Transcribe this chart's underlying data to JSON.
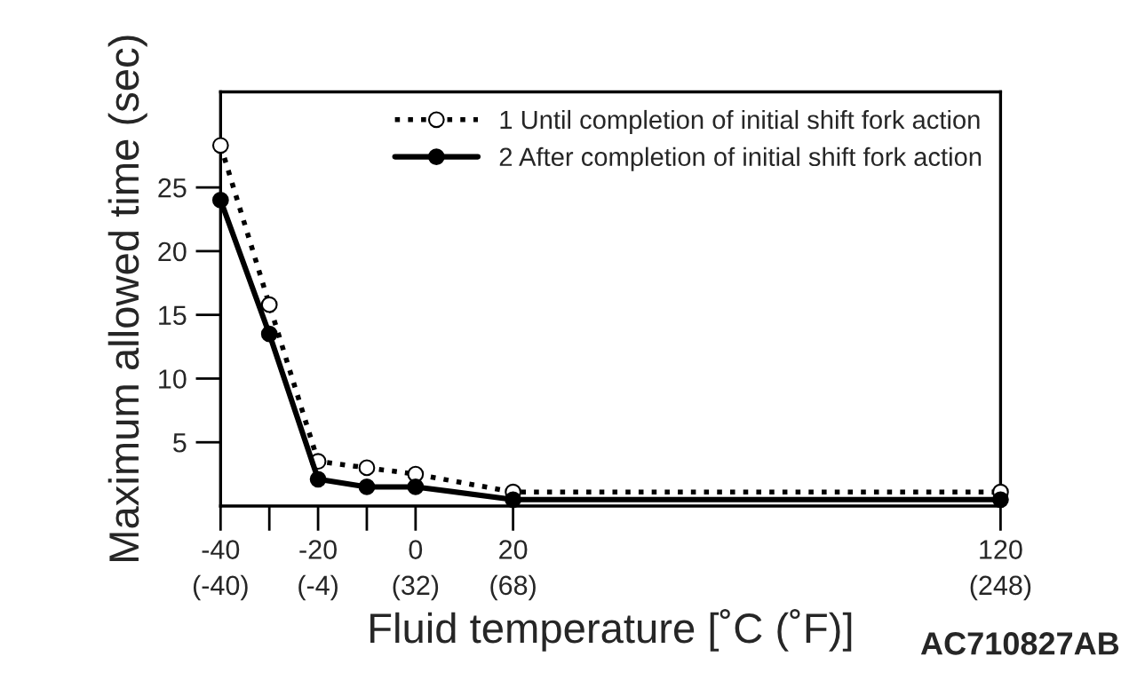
{
  "chart_data": {
    "type": "line",
    "xlabel": "Fluid temperature [˚C (˚F)]",
    "ylabel": "Maximum allowed time (sec)",
    "x": [
      -40,
      -30,
      -20,
      -10,
      0,
      20,
      120
    ],
    "series": [
      {
        "name": "1 Until completion of initial shift fork action",
        "color": "#000000",
        "line_style": "dotted",
        "marker": "circle",
        "values": [
          28.3,
          15.8,
          3.5,
          3.0,
          2.5,
          1.1,
          1.1
        ]
      },
      {
        "name": "2 After completion of initial shift fork action",
        "color": "#000000",
        "line_style": "solid",
        "marker": "circle",
        "values": [
          24.0,
          13.5,
          2.1,
          1.5,
          1.5,
          0.5,
          0.5
        ]
      }
    ],
    "xlim": [
      -40,
      120
    ],
    "xticks": [
      -40,
      {
        "value": -30,
        "label": null
      },
      -20,
      {
        "value": -10,
        "label": null
      },
      0,
      20,
      120
    ],
    "x2lim": [
      -40,
      248
    ],
    "x2ticks": [
      {
        "value": -40,
        "label": "(-40)"
      },
      {
        "value": -4,
        "label": "(-4)"
      },
      {
        "value": 32,
        "label": "(32)"
      },
      {
        "value": 68,
        "label": "(68)"
      },
      {
        "value": 248,
        "label": "(248)"
      }
    ],
    "ylim": [
      0,
      32.5
    ],
    "yticks": [
      5,
      10,
      15,
      20,
      25
    ],
    "grid": false,
    "legend": "top right",
    "annotations": [
      "AC710827AB"
    ]
  }
}
